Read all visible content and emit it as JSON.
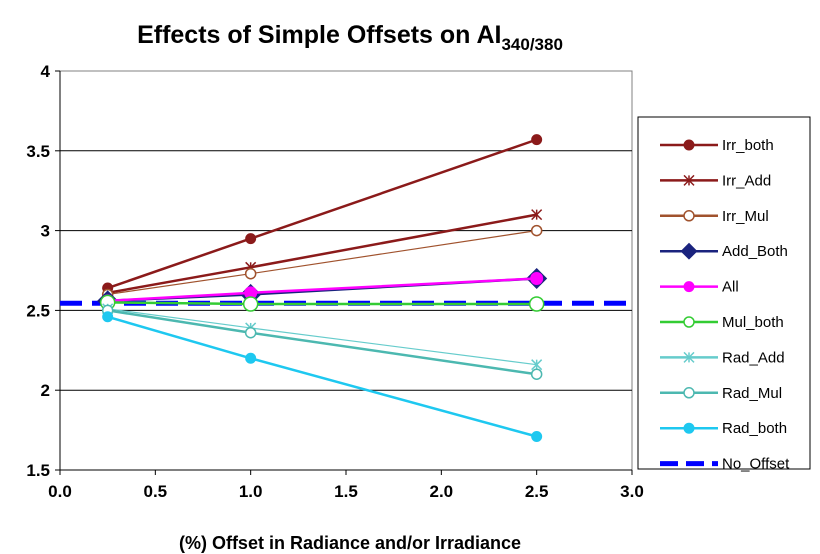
{
  "chart_data": {
    "type": "line",
    "title": "Effects of Simple Offsets on AI",
    "title_subscript": "340/380",
    "xlabel": "(%) Offset in Radiance and/or Irradiance",
    "ylabel": "",
    "xlim": [
      0.0,
      3.0
    ],
    "ylim": [
      1.5,
      4.0
    ],
    "x_ticks": [
      "0.0",
      "0.5",
      "1.0",
      "1.5",
      "2.0",
      "2.5",
      "3.0"
    ],
    "y_ticks": [
      "1.5",
      "2",
      "2.5",
      "3",
      "3.5",
      "4"
    ],
    "grid": "horizontal",
    "legend_position": "right",
    "series": [
      {
        "name": "Irr_both",
        "color": "#8b1a1a",
        "marker": "filled-circle",
        "x": [
          0.25,
          1.0,
          2.5
        ],
        "y": [
          2.64,
          2.95,
          3.57
        ]
      },
      {
        "name": "Irr_Add",
        "color": "#8b1a1a",
        "marker": "asterisk",
        "x": [
          0.25,
          1.0,
          2.5
        ],
        "y": [
          2.61,
          2.77,
          3.1
        ]
      },
      {
        "name": "Irr_Mul",
        "color": "#a0522d",
        "marker": "open-circle",
        "x": [
          0.25,
          1.0,
          2.5
        ],
        "y": [
          2.6,
          2.73,
          3.0
        ]
      },
      {
        "name": "Add_Both",
        "color": "#1a237e",
        "marker": "diamond",
        "x": [
          0.25,
          1.0,
          2.5
        ],
        "y": [
          2.56,
          2.6,
          2.7
        ]
      },
      {
        "name": "All",
        "color": "#ff00ff",
        "marker": "filled-circle",
        "x": [
          0.25,
          1.0,
          2.5
        ],
        "y": [
          2.56,
          2.61,
          2.7
        ]
      },
      {
        "name": "Mul_both",
        "color": "#33cc33",
        "marker": "open-circle",
        "x": [
          0.25,
          1.0,
          2.5
        ],
        "y": [
          2.55,
          2.54,
          2.54
        ]
      },
      {
        "name": "Rad_Add",
        "color": "#66cccc",
        "marker": "asterisk",
        "x": [
          0.25,
          1.0,
          2.5
        ],
        "y": [
          2.51,
          2.39,
          2.16
        ]
      },
      {
        "name": "Rad_Mul",
        "color": "#4cb8b0",
        "marker": "open-circle",
        "x": [
          0.25,
          1.0,
          2.5
        ],
        "y": [
          2.5,
          2.36,
          2.1
        ]
      },
      {
        "name": "Rad_both",
        "color": "#1ec8f0",
        "marker": "filled-circle",
        "x": [
          0.25,
          1.0,
          2.5
        ],
        "y": [
          2.46,
          2.2,
          1.71
        ]
      },
      {
        "name": "No_Offset",
        "color": "#0000ff",
        "marker": "none",
        "dashed": true,
        "x": [
          0.0,
          3.0
        ],
        "y": [
          2.545,
          2.545
        ]
      }
    ]
  }
}
